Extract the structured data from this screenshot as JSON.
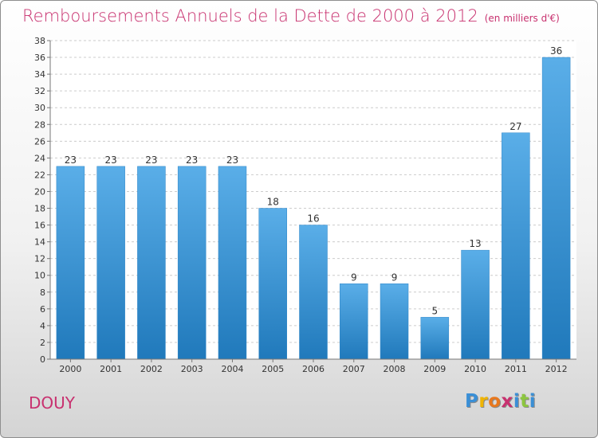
{
  "title": "Remboursements Annuels de la Dette de 2000 à 2012",
  "unit_note": "(en milliers d'€)",
  "commune": "DOUY",
  "logo_letters": [
    "P",
    "r",
    "o",
    "x",
    "i",
    "t",
    "i"
  ],
  "logo_colors": [
    "#3a8fd6",
    "#f0b400",
    "#e8781e",
    "#c8316f",
    "#3a8fd6",
    "#8cc63e",
    "#3a8fd6"
  ],
  "bar_color": "#3a8fd6",
  "chart_data": {
    "type": "bar",
    "title": "Remboursements Annuels de la Dette de 2000 à 2012",
    "categories": [
      "2000",
      "2001",
      "2002",
      "2003",
      "2004",
      "2005",
      "2006",
      "2007",
      "2008",
      "2009",
      "2010",
      "2011",
      "2012"
    ],
    "values": [
      23,
      23,
      23,
      23,
      23,
      18,
      16,
      9,
      9,
      5,
      13,
      27,
      36
    ],
    "ylim": [
      0,
      38
    ],
    "yticks": [
      0,
      2,
      4,
      6,
      8,
      10,
      12,
      14,
      16,
      18,
      20,
      22,
      24,
      26,
      28,
      30,
      32,
      34,
      36,
      38
    ],
    "grid": "horizontal dashed",
    "data_labels": true
  }
}
